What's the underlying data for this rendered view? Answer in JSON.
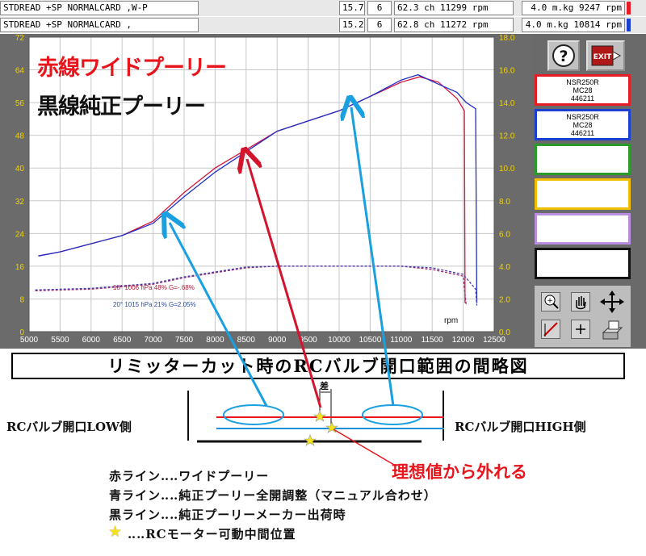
{
  "runs": [
    {
      "name": "STDREAD +SP  NORMALCARD ,W-P",
      "v1": "15.7",
      "v2": "6",
      "ch": "62.3 ch 11299 rpm",
      "torque": "4.0 m.kg 9247 rpm",
      "color": "#e81c24"
    },
    {
      "name": "STDREAD +SP  NORMALCARD ,",
      "v1": "15.2",
      "v2": "6",
      "ch": "62.8 ch 11272 rpm",
      "torque": "4.0 m.kg 10814 rpm",
      "color": "#1b3fd1"
    }
  ],
  "chart_title_red": "赤線ワイドプーリー",
  "chart_title_black": "黒線純正プーリー",
  "conditions": {
    "red": "18° 1006 hPa 48%  G=-.68%",
    "blue": "20° 1015 hPa 21%  G=2.05%"
  },
  "chart_data": {
    "type": "line",
    "x_unit": "rpm",
    "xlabel": "rpm",
    "xlim": [
      5000,
      12500
    ],
    "x_ticks": [
      5000,
      5500,
      6000,
      6500,
      7000,
      7500,
      8000,
      8500,
      9000,
      9500,
      10000,
      10500,
      11000,
      11500,
      12000,
      12500
    ],
    "ylim_left": [
      0,
      72
    ],
    "y_ticks_left": [
      0,
      8,
      16,
      24,
      32,
      40,
      48,
      56,
      64,
      72
    ],
    "ylim_right": [
      0,
      18
    ],
    "y_ticks_right": [
      "0.0",
      "2.0",
      "4.0",
      "6.0",
      "8.0",
      "10.0",
      "12.0",
      "14.0",
      "16.0",
      "18.0"
    ],
    "grid": true,
    "series": [
      {
        "axis": "left",
        "color": "#d4143c",
        "points": [
          [
            5150,
            18.5
          ],
          [
            5500,
            19.5
          ],
          [
            6000,
            21.5
          ],
          [
            6500,
            23.5
          ],
          [
            7000,
            27
          ],
          [
            7500,
            34
          ],
          [
            8000,
            40
          ],
          [
            8500,
            44.5
          ],
          [
            9000,
            49
          ],
          [
            9500,
            51.5
          ],
          [
            10000,
            54
          ],
          [
            10500,
            57.5
          ],
          [
            11000,
            61
          ],
          [
            11300,
            62.3
          ],
          [
            11600,
            61
          ],
          [
            11900,
            57
          ],
          [
            12020,
            54
          ],
          [
            12030,
            7
          ]
        ]
      },
      {
        "axis": "left",
        "color": "#2030c8",
        "points": [
          [
            5150,
            18.5
          ],
          [
            5500,
            19.5
          ],
          [
            6000,
            21.5
          ],
          [
            6500,
            23.5
          ],
          [
            7000,
            26.5
          ],
          [
            7500,
            33
          ],
          [
            8000,
            39
          ],
          [
            8500,
            44
          ],
          [
            9000,
            49
          ],
          [
            9500,
            51.5
          ],
          [
            10000,
            54
          ],
          [
            10500,
            57.5
          ],
          [
            11000,
            61.5
          ],
          [
            11272,
            62.8
          ],
          [
            11600,
            60.5
          ],
          [
            11900,
            58.5
          ],
          [
            12050,
            56
          ],
          [
            12200,
            54.5
          ],
          [
            12220,
            7
          ]
        ]
      },
      {
        "axis": "right",
        "style": "dashed",
        "color": "#a02a6a",
        "points": [
          [
            5100,
            2.5
          ],
          [
            6000,
            2.6
          ],
          [
            7000,
            2.9
          ],
          [
            7500,
            3.3
          ],
          [
            8000,
            3.6
          ],
          [
            8500,
            3.9
          ],
          [
            9000,
            4.0
          ],
          [
            10000,
            4.0
          ],
          [
            11000,
            4.0
          ],
          [
            11500,
            3.8
          ],
          [
            12000,
            3.4
          ],
          [
            12050,
            1.6
          ]
        ]
      },
      {
        "axis": "right",
        "style": "dashed",
        "color": "#4a3ab0",
        "points": [
          [
            5100,
            2.55
          ],
          [
            6000,
            2.65
          ],
          [
            7000,
            2.95
          ],
          [
            7500,
            3.35
          ],
          [
            8000,
            3.65
          ],
          [
            8500,
            3.95
          ],
          [
            9000,
            4.0
          ],
          [
            10000,
            4.0
          ],
          [
            11000,
            4.0
          ],
          [
            11500,
            3.9
          ],
          [
            12000,
            3.5
          ],
          [
            12200,
            2.6
          ],
          [
            12220,
            1.6
          ]
        ]
      }
    ]
  },
  "panel": {
    "slots": [
      {
        "line1": "NSR250R",
        "line2": "MC28",
        "line3": "446211"
      },
      {
        "line1": "NSR250R",
        "line2": "MC28",
        "line3": "446211"
      },
      {
        "line1": "",
        "line2": "",
        "line3": ""
      },
      {
        "line1": "",
        "line2": "",
        "line3": ""
      },
      {
        "line1": "",
        "line2": "",
        "line3": ""
      },
      {
        "line1": "",
        "line2": "",
        "line3": ""
      }
    ]
  },
  "diagram": {
    "title": "リミッターカット時のRCバルブ開口範囲の間略図",
    "label_low": "RCバルブ開口LOW側",
    "label_high": "RCバルブ開口HIGH側",
    "label_ideal": "理想値から外れる",
    "label_diff": "差",
    "legend": [
      "赤ライン‥‥ワイドプーリー",
      "青ライン‥‥純正プーリー全開調整（マニュアル合わせ）",
      "黒ライン‥‥純正プーリーメーカー出荷時",
      "‥‥RCモーター可動中間位置"
    ],
    "colors": {
      "red": "#e8161c",
      "blue": "#1f8fd8",
      "black": "#111111",
      "arrow_red": "#e8161c",
      "arrow_blue": "#1aa0e0"
    }
  }
}
